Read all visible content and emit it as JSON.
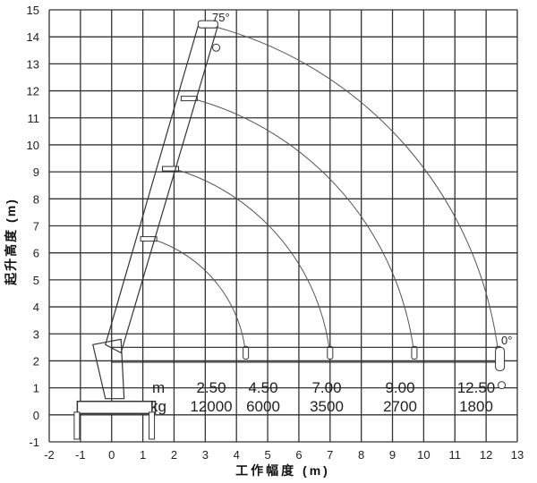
{
  "diagram": {
    "xlabel": "工作幅度 (m)",
    "ylabel": "起升高度 (m)",
    "x_ticks": [
      "-2",
      "-1",
      "0",
      "1",
      "2",
      "3",
      "4",
      "5",
      "6",
      "7",
      "8",
      "9",
      "10",
      "11",
      "12",
      "13"
    ],
    "y_ticks": [
      "-1",
      "0",
      "1",
      "2",
      "3",
      "4",
      "5",
      "6",
      "7",
      "8",
      "9",
      "10",
      "11",
      "12",
      "13",
      "14",
      "15"
    ],
    "xlim": [
      -2,
      13
    ],
    "ylim": [
      -1,
      15
    ],
    "angle_top": "75°",
    "angle_bottom": "0°",
    "load_table": {
      "radius_unit": "m",
      "load_unit": "kg",
      "radius": [
        "2.50",
        "4.50",
        "7.00",
        "9.00",
        "12.50"
      ],
      "load": [
        "12000",
        "6000",
        "3500",
        "2700",
        "1800"
      ]
    },
    "boom_sections": [
      {
        "top": [
          1.1,
          6.5
        ],
        "horizontal_end": [
          4.3,
          2.2
        ]
      },
      {
        "top": [
          1.8,
          9.1
        ],
        "horizontal_end": [
          7.0,
          2.2
        ]
      },
      {
        "top": [
          2.4,
          11.7
        ],
        "horizontal_end": [
          9.7,
          2.2
        ]
      },
      {
        "top": [
          3.0,
          14.4
        ],
        "horizontal_end": [
          12.4,
          2.2
        ]
      }
    ]
  }
}
